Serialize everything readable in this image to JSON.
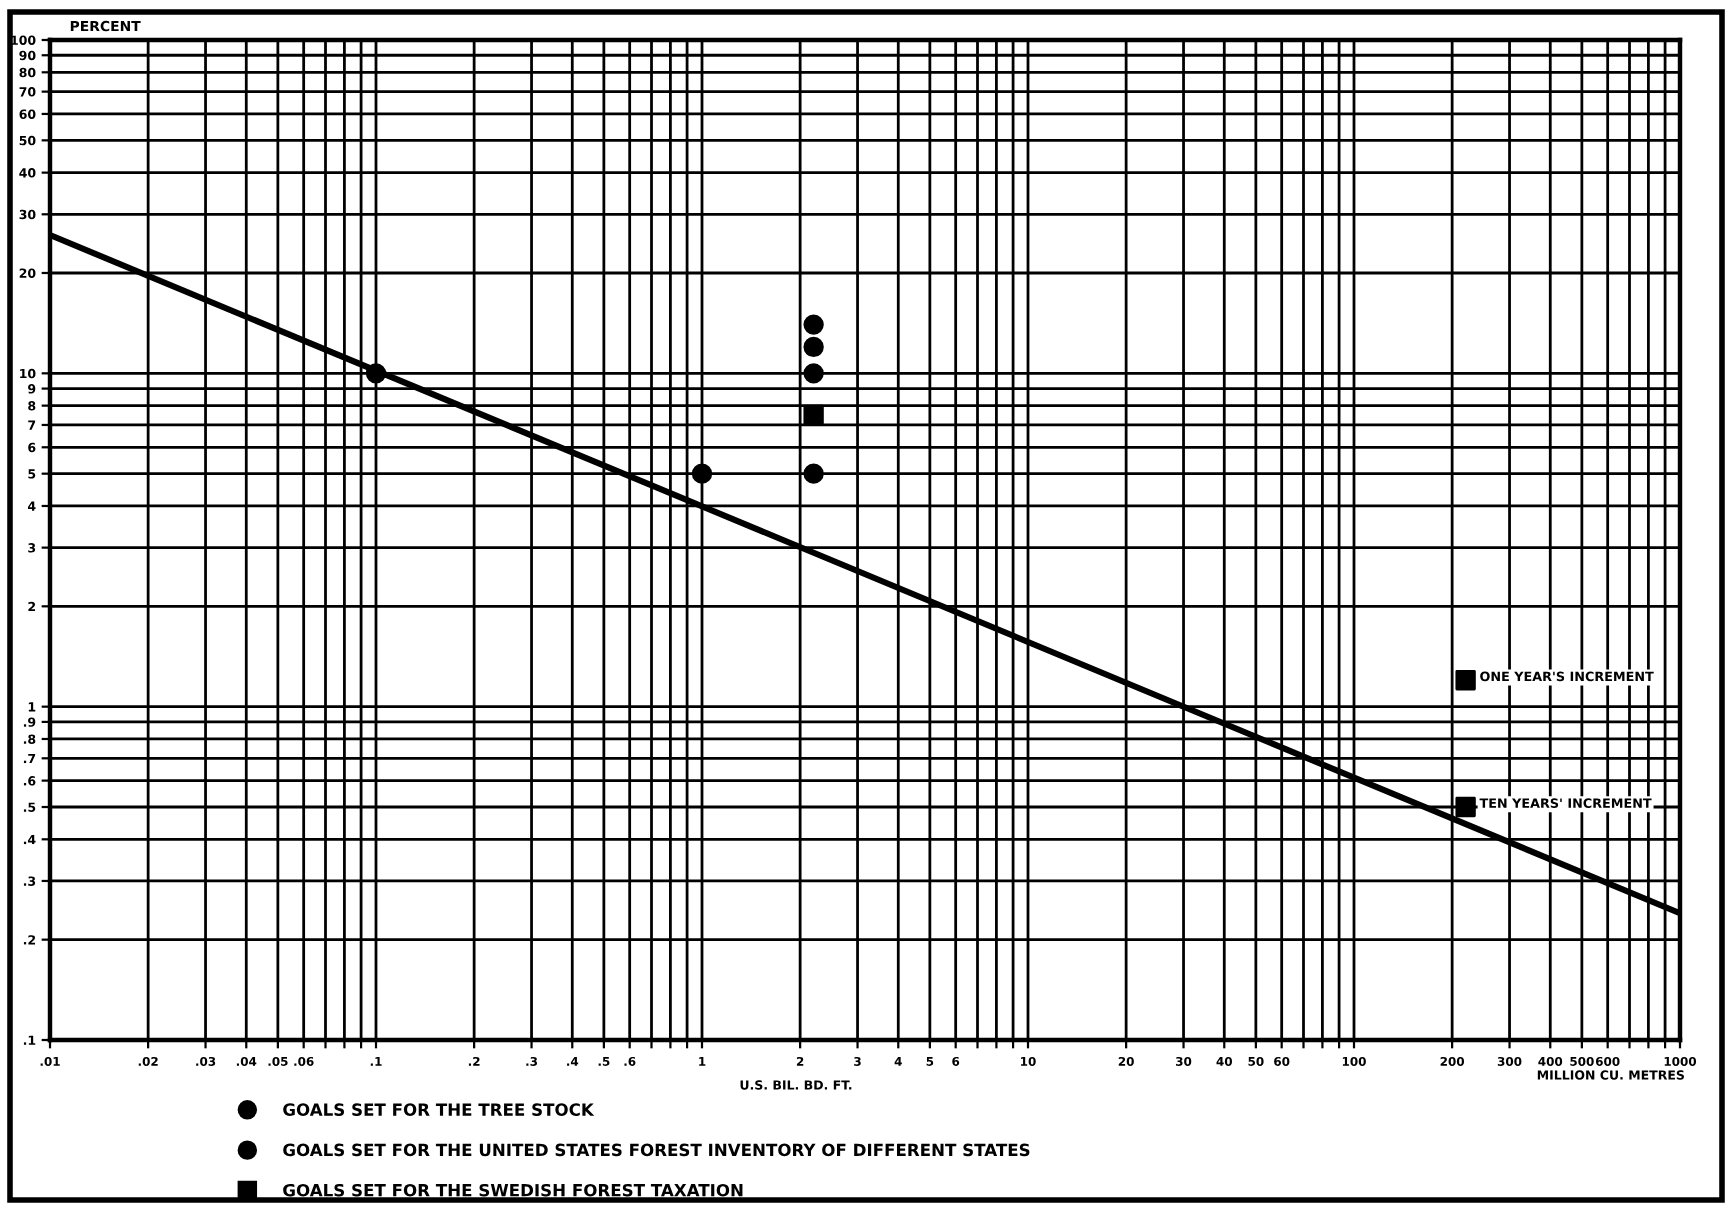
{
  "chart_data": {
    "type": "scatter",
    "ylabel": "PERCENT",
    "xlabel": "MILLION CU. METRES",
    "log": "xy",
    "xlim": [
      0.01,
      1000
    ],
    "ylim": [
      0.1,
      100
    ],
    "xticks": [
      {
        "value": 0.01,
        "label": ".01"
      },
      {
        "value": 0.02,
        "label": ".02"
      },
      {
        "value": 0.03,
        "label": ".03"
      },
      {
        "value": 0.04,
        "label": ".04"
      },
      {
        "value": 0.05,
        "label": ".05"
      },
      {
        "value": 0.06,
        "label": ".06"
      },
      {
        "value": 0.07,
        "label": null
      },
      {
        "value": 0.08,
        "label": null
      },
      {
        "value": 0.09,
        "label": null
      },
      {
        "value": 0.1,
        "label": ".1"
      },
      {
        "value": 0.2,
        "label": ".2"
      },
      {
        "value": 0.3,
        "label": ".3"
      },
      {
        "value": 0.4,
        "label": ".4"
      },
      {
        "value": 0.5,
        "label": ".5"
      },
      {
        "value": 0.6,
        "label": ".6"
      },
      {
        "value": 0.7,
        "label": null
      },
      {
        "value": 0.8,
        "label": null
      },
      {
        "value": 0.9,
        "label": null
      },
      1,
      2,
      3,
      4,
      5,
      6,
      {
        "value": 7,
        "label": null
      },
      {
        "value": 8,
        "label": null
      },
      {
        "value": 9,
        "label": null
      },
      10,
      20,
      30,
      40,
      50,
      60,
      {
        "value": 70,
        "label": null
      },
      {
        "value": 80,
        "label": null
      },
      {
        "value": 90,
        "label": null
      },
      100,
      200,
      300,
      400,
      500,
      600,
      {
        "value": 700,
        "label": null
      },
      {
        "value": 800,
        "label": null
      },
      {
        "value": 900,
        "label": null
      },
      1000
    ],
    "yticks": [
      {
        "value": 0.1,
        "label": ".1"
      },
      {
        "value": 0.2,
        "label": ".2"
      },
      {
        "value": 0.3,
        "label": ".3"
      },
      {
        "value": 0.4,
        "label": ".4"
      },
      {
        "value": 0.5,
        "label": ".5"
      },
      {
        "value": 0.6,
        "label": ".6"
      },
      {
        "value": 0.7,
        "label": ".7"
      },
      {
        "value": 0.8,
        "label": ".8"
      },
      {
        "value": 0.9,
        "label": ".9"
      },
      1,
      2,
      3,
      4,
      5,
      6,
      7,
      8,
      9,
      10,
      20,
      30,
      40,
      50,
      60,
      70,
      80,
      90,
      100
    ],
    "grid": true,
    "legend": "bottom",
    "series": [
      {
        "name": "GOALS SET FOR THE TREE STOCK",
        "marker": "circle",
        "color": "#000000",
        "x": [
          0.1,
          1
        ],
        "values": [
          10,
          5
        ]
      },
      {
        "name": "GOALS SET FOR THE UNITED STATES FOREST INVENTORY OF DIFFERENT STATES",
        "marker": "circle",
        "color": "#000000",
        "x": [
          2.2,
          2.2,
          2.2,
          2.2
        ],
        "values": [
          14,
          12,
          10,
          5
        ]
      },
      {
        "name": "GOALS SET FOR THE SWEDISH FOREST TAXATION",
        "marker": "square",
        "color": "#000000",
        "x": [
          2.2,
          220,
          220
        ],
        "values": [
          7.5,
          1.2,
          0.5
        ]
      },
      {
        "type": "line",
        "marker": "none",
        "line_style": "solid",
        "color": "#000000",
        "x": [
          0.01,
          1000
        ],
        "values": [
          26,
          0.24
        ]
      }
    ],
    "annotations": [
      {
        "text": "ONE YEAR'S INCREMENT",
        "x": 220,
        "y": 1.2
      },
      {
        "text": "TEN YEARS' INCREMENT",
        "x": 220,
        "y": 0.5
      },
      "U.S. BIL. BD. FT."
    ]
  }
}
